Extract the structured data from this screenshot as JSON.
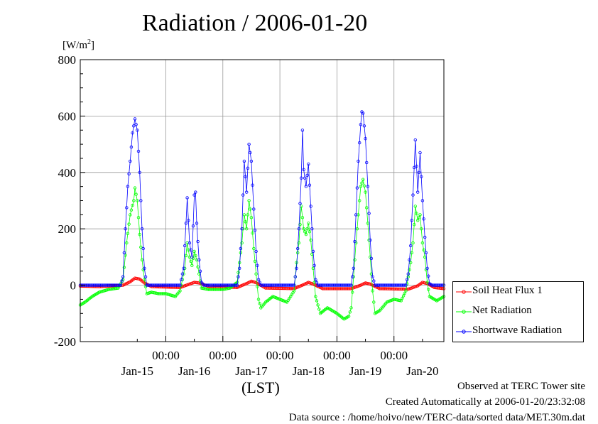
{
  "chart_data": {
    "type": "line",
    "title": "Radiation / 2006-01-20",
    "unit_label": "[W/m²]",
    "unit_base": "[W/m",
    "unit_sup": "2",
    "unit_close": "]",
    "xlabel": "(LST)",
    "ylim": [
      -200,
      800
    ],
    "yticks": [
      -200,
      0,
      200,
      400,
      600,
      800
    ],
    "xlim": [
      "2006-01-14 12:00",
      "2006-01-20 21:00"
    ],
    "time_ticks": [
      {
        "time": "2006-01-16 00:00",
        "label": "00:00"
      },
      {
        "time": "2006-01-17 00:00",
        "label": "00:00"
      },
      {
        "time": "2006-01-18 00:00",
        "label": "00:00"
      },
      {
        "time": "2006-01-19 00:00",
        "label": "00:00"
      },
      {
        "time": "2006-01-20 00:00",
        "label": "00:00"
      }
    ],
    "date_labels": [
      {
        "time": "2006-01-15 12:00",
        "label": "Jan-15"
      },
      {
        "time": "2006-01-16 12:00",
        "label": "Jan-16"
      },
      {
        "time": "2006-01-17 12:00",
        "label": "Jan-17"
      },
      {
        "time": "2006-01-18 12:00",
        "label": "Jan-18"
      },
      {
        "time": "2006-01-19 12:00",
        "label": "Jan-19"
      },
      {
        "time": "2006-01-20 12:00",
        "label": "Jan-20"
      }
    ],
    "grid": true,
    "legend_position": "right",
    "series": [
      {
        "name": "Soil Heat Flux 1",
        "color": "#ff0000",
        "points": [
          [
            "2006-01-14 12:00",
            -3
          ],
          [
            "2006-01-14 20:00",
            -5
          ],
          [
            "2006-01-15 06:00",
            0
          ],
          [
            "2006-01-15 09:00",
            12
          ],
          [
            "2006-01-15 11:00",
            25
          ],
          [
            "2006-01-15 13:00",
            22
          ],
          [
            "2006-01-15 15:00",
            8
          ],
          [
            "2006-01-15 18:00",
            -5
          ],
          [
            "2006-01-16 06:00",
            -8
          ],
          [
            "2006-01-16 10:00",
            4
          ],
          [
            "2006-01-16 12:00",
            10
          ],
          [
            "2006-01-16 14:00",
            8
          ],
          [
            "2006-01-16 18:00",
            -4
          ],
          [
            "2006-01-17 06:00",
            -8
          ],
          [
            "2006-01-17 10:00",
            6
          ],
          [
            "2006-01-17 12:00",
            14
          ],
          [
            "2006-01-17 14:00",
            9
          ],
          [
            "2006-01-17 18:00",
            -10
          ],
          [
            "2006-01-18 06:00",
            -12
          ],
          [
            "2006-01-18 10:00",
            2
          ],
          [
            "2006-01-18 12:00",
            10
          ],
          [
            "2006-01-18 14:00",
            4
          ],
          [
            "2006-01-18 18:00",
            -12
          ],
          [
            "2006-01-19 06:00",
            -12
          ],
          [
            "2006-01-19 10:00",
            0
          ],
          [
            "2006-01-19 12:00",
            8
          ],
          [
            "2006-01-19 14:00",
            4
          ],
          [
            "2006-01-19 18:00",
            -12
          ],
          [
            "2006-01-20 06:00",
            -14
          ],
          [
            "2006-01-20 10:00",
            -2
          ],
          [
            "2006-01-20 12:00",
            10
          ],
          [
            "2006-01-20 14:00",
            6
          ],
          [
            "2006-01-20 17:00",
            -8
          ],
          [
            "2006-01-20 21:00",
            -12
          ]
        ]
      },
      {
        "name": "Net Radiation",
        "color": "#00ff00",
        "points": [
          [
            "2006-01-14 12:00",
            -70
          ],
          [
            "2006-01-14 14:00",
            -60
          ],
          [
            "2006-01-14 17:00",
            -40
          ],
          [
            "2006-01-14 20:00",
            -25
          ],
          [
            "2006-01-15 00:00",
            -15
          ],
          [
            "2006-01-15 04:00",
            -10
          ],
          [
            "2006-01-15 06:00",
            20
          ],
          [
            "2006-01-15 07:30",
            150
          ],
          [
            "2006-01-15 09:00",
            250
          ],
          [
            "2006-01-15 10:30",
            300
          ],
          [
            "2006-01-15 11:00",
            345
          ],
          [
            "2006-01-15 12:00",
            300
          ],
          [
            "2006-01-15 13:00",
            180
          ],
          [
            "2006-01-15 14:00",
            90
          ],
          [
            "2006-01-15 15:00",
            20
          ],
          [
            "2006-01-15 16:00",
            -30
          ],
          [
            "2006-01-15 18:00",
            -25
          ],
          [
            "2006-01-15 21:00",
            -30
          ],
          [
            "2006-01-16 00:00",
            -30
          ],
          [
            "2006-01-16 04:00",
            -40
          ],
          [
            "2006-01-16 06:00",
            -20
          ],
          [
            "2006-01-16 08:00",
            60
          ],
          [
            "2006-01-16 09:00",
            150
          ],
          [
            "2006-01-16 10:00",
            100
          ],
          [
            "2006-01-16 11:00",
            70
          ],
          [
            "2006-01-16 12:00",
            120
          ],
          [
            "2006-01-16 13:00",
            90
          ],
          [
            "2006-01-16 14:00",
            40
          ],
          [
            "2006-01-16 15:00",
            -10
          ],
          [
            "2006-01-16 18:00",
            -15
          ],
          [
            "2006-01-17 00:00",
            -15
          ],
          [
            "2006-01-17 03:00",
            -10
          ],
          [
            "2006-01-17 06:00",
            10
          ],
          [
            "2006-01-17 07:00",
            80
          ],
          [
            "2006-01-17 08:00",
            150
          ],
          [
            "2006-01-17 09:00",
            250
          ],
          [
            "2006-01-17 10:00",
            200
          ],
          [
            "2006-01-17 11:00",
            300
          ],
          [
            "2006-01-17 12:00",
            240
          ],
          [
            "2006-01-17 13:00",
            130
          ],
          [
            "2006-01-17 14:00",
            40
          ],
          [
            "2006-01-17 15:00",
            -50
          ],
          [
            "2006-01-17 16:00",
            -80
          ],
          [
            "2006-01-17 18:00",
            -60
          ],
          [
            "2006-01-17 21:00",
            -40
          ],
          [
            "2006-01-18 00:00",
            -50
          ],
          [
            "2006-01-18 03:00",
            -60
          ],
          [
            "2006-01-18 06:00",
            -20
          ],
          [
            "2006-01-18 07:00",
            80
          ],
          [
            "2006-01-18 08:00",
            150
          ],
          [
            "2006-01-18 09:00",
            280
          ],
          [
            "2006-01-18 10:00",
            200
          ],
          [
            "2006-01-18 11:00",
            180
          ],
          [
            "2006-01-18 12:00",
            220
          ],
          [
            "2006-01-18 13:00",
            160
          ],
          [
            "2006-01-18 14:00",
            60
          ],
          [
            "2006-01-18 15:00",
            -40
          ],
          [
            "2006-01-18 17:00",
            -100
          ],
          [
            "2006-01-18 20:00",
            -80
          ],
          [
            "2006-01-19 00:00",
            -100
          ],
          [
            "2006-01-19 03:00",
            -120
          ],
          [
            "2006-01-19 05:00",
            -110
          ],
          [
            "2006-01-19 06:00",
            -80
          ],
          [
            "2006-01-19 07:00",
            30
          ],
          [
            "2006-01-19 08:00",
            150
          ],
          [
            "2006-01-19 09:00",
            250
          ],
          [
            "2006-01-19 10:00",
            350
          ],
          [
            "2006-01-19 11:00",
            375
          ],
          [
            "2006-01-19 12:00",
            330
          ],
          [
            "2006-01-19 13:00",
            220
          ],
          [
            "2006-01-19 14:00",
            100
          ],
          [
            "2006-01-19 15:00",
            -20
          ],
          [
            "2006-01-19 16:00",
            -100
          ],
          [
            "2006-01-19 18:00",
            -90
          ],
          [
            "2006-01-19 21:00",
            -60
          ],
          [
            "2006-01-20 00:00",
            -50
          ],
          [
            "2006-01-20 03:00",
            -55
          ],
          [
            "2006-01-20 05:00",
            -20
          ],
          [
            "2006-01-20 07:00",
            80
          ],
          [
            "2006-01-20 08:00",
            150
          ],
          [
            "2006-01-20 09:00",
            280
          ],
          [
            "2006-01-20 10:00",
            230
          ],
          [
            "2006-01-20 11:00",
            250
          ],
          [
            "2006-01-20 12:00",
            150
          ],
          [
            "2006-01-20 13:00",
            100
          ],
          [
            "2006-01-20 14:00",
            10
          ],
          [
            "2006-01-20 15:00",
            -40
          ],
          [
            "2006-01-20 18:00",
            -55
          ],
          [
            "2006-01-20 21:00",
            -40
          ]
        ]
      },
      {
        "name": "Shortwave Radiation",
        "color": "#0000ff",
        "points": [
          [
            "2006-01-14 12:00",
            0
          ],
          [
            "2006-01-15 05:00",
            0
          ],
          [
            "2006-01-15 06:00",
            30
          ],
          [
            "2006-01-15 07:00",
            200
          ],
          [
            "2006-01-15 08:00",
            350
          ],
          [
            "2006-01-15 09:00",
            440
          ],
          [
            "2006-01-15 10:00",
            540
          ],
          [
            "2006-01-15 11:00",
            590
          ],
          [
            "2006-01-15 12:00",
            550
          ],
          [
            "2006-01-15 13:00",
            400
          ],
          [
            "2006-01-15 14:00",
            200
          ],
          [
            "2006-01-15 15:00",
            60
          ],
          [
            "2006-01-15 16:00",
            0
          ],
          [
            "2006-01-16 06:00",
            0
          ],
          [
            "2006-01-16 07:30",
            60
          ],
          [
            "2006-01-16 08:30",
            220
          ],
          [
            "2006-01-16 09:00",
            310
          ],
          [
            "2006-01-16 10:00",
            150
          ],
          [
            "2006-01-16 11:00",
            100
          ],
          [
            "2006-01-16 12:00",
            320
          ],
          [
            "2006-01-16 12:30",
            330
          ],
          [
            "2006-01-16 13:00",
            220
          ],
          [
            "2006-01-16 14:00",
            90
          ],
          [
            "2006-01-16 15:00",
            10
          ],
          [
            "2006-01-16 16:00",
            0
          ],
          [
            "2006-01-17 06:00",
            0
          ],
          [
            "2006-01-17 07:00",
            60
          ],
          [
            "2006-01-17 08:00",
            200
          ],
          [
            "2006-01-17 09:00",
            440
          ],
          [
            "2006-01-17 10:00",
            330
          ],
          [
            "2006-01-17 11:00",
            500
          ],
          [
            "2006-01-17 12:00",
            440
          ],
          [
            "2006-01-17 13:00",
            270
          ],
          [
            "2006-01-17 14:00",
            120
          ],
          [
            "2006-01-17 15:00",
            20
          ],
          [
            "2006-01-17 16:00",
            0
          ],
          [
            "2006-01-18 06:00",
            0
          ],
          [
            "2006-01-18 07:00",
            60
          ],
          [
            "2006-01-18 08:00",
            200
          ],
          [
            "2006-01-18 09:00",
            380
          ],
          [
            "2006-01-18 09:30",
            550
          ],
          [
            "2006-01-18 10:00",
            410
          ],
          [
            "2006-01-18 11:00",
            350
          ],
          [
            "2006-01-18 12:00",
            430
          ],
          [
            "2006-01-18 13:00",
            280
          ],
          [
            "2006-01-18 14:00",
            120
          ],
          [
            "2006-01-18 15:00",
            20
          ],
          [
            "2006-01-18 16:00",
            0
          ],
          [
            "2006-01-19 06:00",
            0
          ],
          [
            "2006-01-19 07:00",
            60
          ],
          [
            "2006-01-19 08:00",
            250
          ],
          [
            "2006-01-19 09:00",
            440
          ],
          [
            "2006-01-19 10:00",
            570
          ],
          [
            "2006-01-19 10:30",
            615
          ],
          [
            "2006-01-19 11:00",
            610
          ],
          [
            "2006-01-19 12:00",
            520
          ],
          [
            "2006-01-19 13:00",
            350
          ],
          [
            "2006-01-19 14:00",
            160
          ],
          [
            "2006-01-19 15:00",
            30
          ],
          [
            "2006-01-19 16:00",
            0
          ],
          [
            "2006-01-20 05:00",
            0
          ],
          [
            "2006-01-20 06:00",
            40
          ],
          [
            "2006-01-20 07:00",
            140
          ],
          [
            "2006-01-20 08:00",
            320
          ],
          [
            "2006-01-20 09:00",
            515
          ],
          [
            "2006-01-20 10:00",
            330
          ],
          [
            "2006-01-20 11:00",
            470
          ],
          [
            "2006-01-20 12:00",
            300
          ],
          [
            "2006-01-20 13:00",
            170
          ],
          [
            "2006-01-20 14:00",
            60
          ],
          [
            "2006-01-20 15:00",
            5
          ],
          [
            "2006-01-20 16:00",
            0
          ],
          [
            "2006-01-20 21:00",
            0
          ]
        ]
      }
    ]
  },
  "footer": {
    "line1": "Observed at TERC Tower site",
    "line2": "Created Automatically at 2006-01-20/23:32:08",
    "line3": "Data source : /home/hoivo/new/TERC-data/sorted  data/MET.30m.dat"
  }
}
